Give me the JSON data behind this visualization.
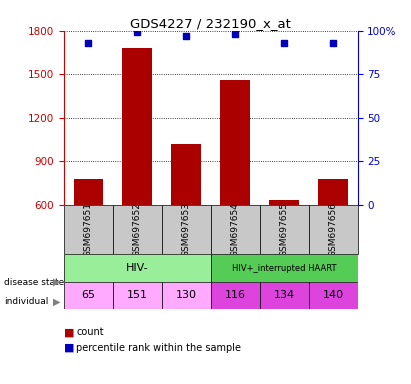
{
  "title": "GDS4227 / 232190_x_at",
  "samples": [
    "GSM697651",
    "GSM697652",
    "GSM697653",
    "GSM697654",
    "GSM697655",
    "GSM697656"
  ],
  "counts": [
    780,
    1680,
    1020,
    1460,
    635,
    780
  ],
  "percentiles": [
    93,
    99,
    97,
    98,
    93,
    93
  ],
  "ylim_left": [
    600,
    1800
  ],
  "ylim_right": [
    0,
    100
  ],
  "yticks_left": [
    600,
    900,
    1200,
    1500,
    1800
  ],
  "yticks_right": [
    0,
    25,
    50,
    75,
    100
  ],
  "bar_color": "#AA0000",
  "dot_color": "#0000BB",
  "disease_state_label1": "HIV-",
  "disease_state_label2": "HIV+_interrupted HAART",
  "disease_state_color1": "#99EE99",
  "disease_state_color2": "#55CC55",
  "individual_labels": [
    "65",
    "151",
    "130",
    "116",
    "134",
    "140"
  ],
  "individual_color1": "#FFAAFF",
  "individual_color2": "#DD44DD",
  "sample_box_color": "#C8C8C8",
  "left_axis_color": "#CC0000",
  "right_axis_color": "#0000CC"
}
